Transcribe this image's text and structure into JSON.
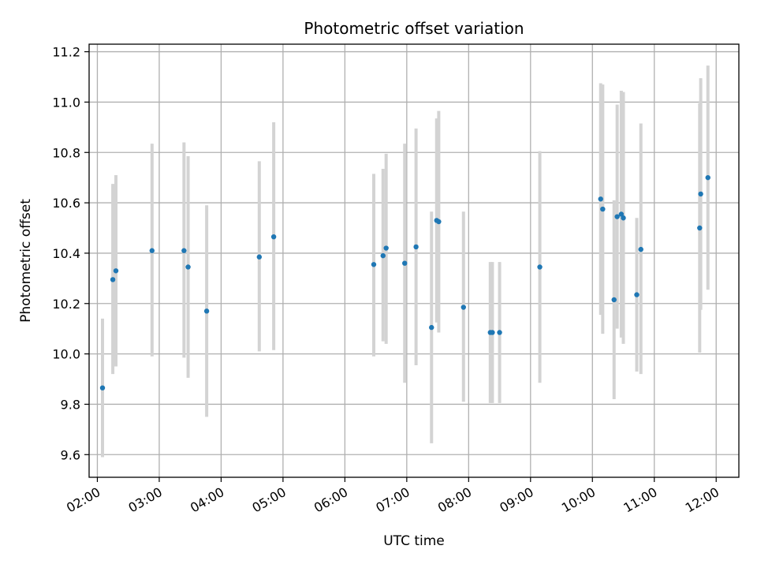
{
  "chart_data": {
    "type": "scatter",
    "title": "Photometric offset variation",
    "xlabel": "UTC time",
    "ylabel": "Photometric offset",
    "xlim": [
      "01:52",
      "12:22"
    ],
    "ylim": [
      9.51,
      11.23
    ],
    "grid": true,
    "x_ticks": [
      "02:00",
      "03:00",
      "04:00",
      "05:00",
      "06:00",
      "07:00",
      "08:00",
      "09:00",
      "10:00",
      "11:00",
      "12:00"
    ],
    "y_ticks": [
      9.6,
      9.8,
      10.0,
      10.2,
      10.4,
      10.6,
      10.8,
      11.0,
      11.2
    ],
    "error_bar_color": "#d3d3d3",
    "marker_color": "#1f77b4",
    "points": [
      {
        "x": "02:05",
        "y": 9.865,
        "lo": 9.59,
        "hi": 10.14
      },
      {
        "x": "02:15",
        "y": 10.295,
        "lo": 9.92,
        "hi": 10.675
      },
      {
        "x": "02:18",
        "y": 10.33,
        "lo": 9.95,
        "hi": 10.71
      },
      {
        "x": "02:53",
        "y": 10.41,
        "lo": 9.99,
        "hi": 10.835
      },
      {
        "x": "03:24",
        "y": 10.41,
        "lo": 9.985,
        "hi": 10.84
      },
      {
        "x": "03:28",
        "y": 10.345,
        "lo": 9.905,
        "hi": 10.785
      },
      {
        "x": "03:46",
        "y": 10.17,
        "lo": 9.75,
        "hi": 10.59
      },
      {
        "x": "04:37",
        "y": 10.385,
        "lo": 10.01,
        "hi": 10.765
      },
      {
        "x": "04:51",
        "y": 10.465,
        "lo": 10.015,
        "hi": 10.92
      },
      {
        "x": "06:28",
        "y": 10.355,
        "lo": 9.99,
        "hi": 10.715
      },
      {
        "x": "06:37",
        "y": 10.39,
        "lo": 10.05,
        "hi": 10.735
      },
      {
        "x": "06:40",
        "y": 10.42,
        "lo": 10.04,
        "hi": 10.795
      },
      {
        "x": "06:58",
        "y": 10.36,
        "lo": 9.885,
        "hi": 10.835
      },
      {
        "x": "07:09",
        "y": 10.425,
        "lo": 9.955,
        "hi": 10.895
      },
      {
        "x": "07:24",
        "y": 10.105,
        "lo": 9.645,
        "hi": 10.565
      },
      {
        "x": "07:29",
        "y": 10.53,
        "lo": 10.125,
        "hi": 10.935
      },
      {
        "x": "07:31",
        "y": 10.525,
        "lo": 10.085,
        "hi": 10.965
      },
      {
        "x": "07:55",
        "y": 10.185,
        "lo": 9.81,
        "hi": 10.565
      },
      {
        "x": "08:21",
        "y": 10.085,
        "lo": 9.805,
        "hi": 10.365
      },
      {
        "x": "08:23",
        "y": 10.085,
        "lo": 9.805,
        "hi": 10.365
      },
      {
        "x": "08:30",
        "y": 10.085,
        "lo": 9.805,
        "hi": 10.365
      },
      {
        "x": "09:09",
        "y": 10.345,
        "lo": 9.885,
        "hi": 10.805
      },
      {
        "x": "10:08",
        "y": 10.615,
        "lo": 10.155,
        "hi": 11.075
      },
      {
        "x": "10:10",
        "y": 10.575,
        "lo": 10.08,
        "hi": 11.07
      },
      {
        "x": "10:21",
        "y": 10.215,
        "lo": 9.82,
        "hi": 10.61
      },
      {
        "x": "10:24",
        "y": 10.545,
        "lo": 10.1,
        "hi": 10.99
      },
      {
        "x": "10:28",
        "y": 10.555,
        "lo": 10.065,
        "hi": 11.045
      },
      {
        "x": "10:30",
        "y": 10.54,
        "lo": 10.04,
        "hi": 11.04
      },
      {
        "x": "10:43",
        "y": 10.235,
        "lo": 9.93,
        "hi": 10.54
      },
      {
        "x": "10:47",
        "y": 10.415,
        "lo": 9.92,
        "hi": 10.915
      },
      {
        "x": "11:44",
        "y": 10.5,
        "lo": 10.005,
        "hi": 10.995
      },
      {
        "x": "11:45",
        "y": 10.635,
        "lo": 10.175,
        "hi": 11.095
      },
      {
        "x": "11:52",
        "y": 10.7,
        "lo": 10.255,
        "hi": 11.145
      }
    ]
  }
}
